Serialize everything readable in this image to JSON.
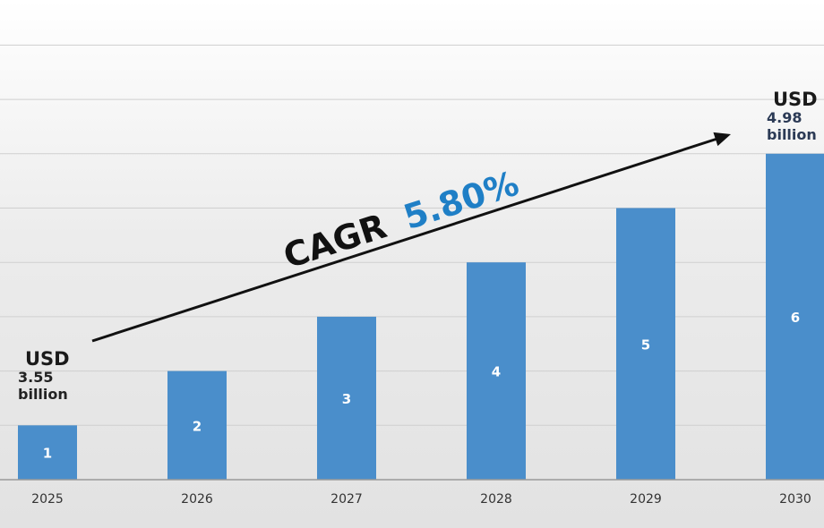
{
  "chart_data": {
    "type": "bar",
    "categories": [
      "2025",
      "2026",
      "2027",
      "2028",
      "2029",
      "2030"
    ],
    "values": [
      1,
      2,
      3,
      4,
      5,
      6
    ],
    "data_labels": [
      "1",
      "2",
      "3",
      "4",
      "5",
      "6"
    ],
    "ylim": [
      0,
      8
    ],
    "grid": true,
    "bar_color": "#4a8ecb",
    "annotations": {
      "start": {
        "line1": "USD",
        "line2": "3.55",
        "line3": "billion"
      },
      "end": {
        "line1": "USD",
        "line2": "4.98",
        "line3": "billion"
      },
      "cagr": {
        "prefix": "CAGR",
        "value": "5.80%",
        "prefix_color": "#111111",
        "value_color": "#1f7fc6"
      }
    }
  }
}
